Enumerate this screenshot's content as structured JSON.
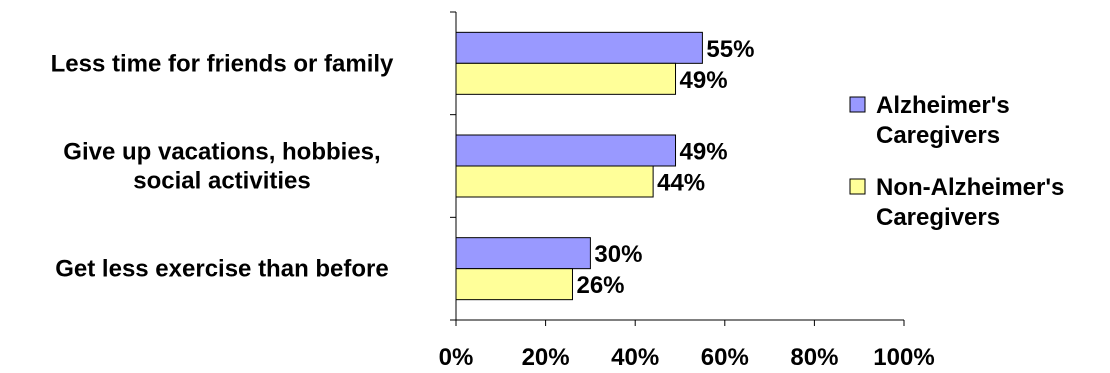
{
  "chart_data": {
    "type": "bar",
    "orientation": "horizontal",
    "title": "",
    "xlabel": "",
    "ylabel": "",
    "xlim": [
      0,
      100
    ],
    "x_ticks": [
      "0%",
      "20%",
      "40%",
      "60%",
      "80%",
      "100%"
    ],
    "categories": [
      [
        "Less time for friends or family"
      ],
      [
        "Give up vacations, hobbies,",
        "social activities"
      ],
      [
        "Get less exercise than before"
      ]
    ],
    "series": [
      {
        "name": "Alzheimer's Caregivers",
        "legend_lines": [
          "Alzheimer's",
          "Caregivers"
        ],
        "color": "#9999ff",
        "values": [
          55,
          49,
          30
        ]
      },
      {
        "name": "Non-Alzheimer's Caregivers",
        "legend_lines": [
          "Non-Alzheimer's",
          "Caregivers"
        ],
        "color": "#ffff99",
        "values": [
          49,
          44,
          26
        ]
      }
    ],
    "value_suffix": "%",
    "grid": false,
    "legend_position": "right"
  }
}
